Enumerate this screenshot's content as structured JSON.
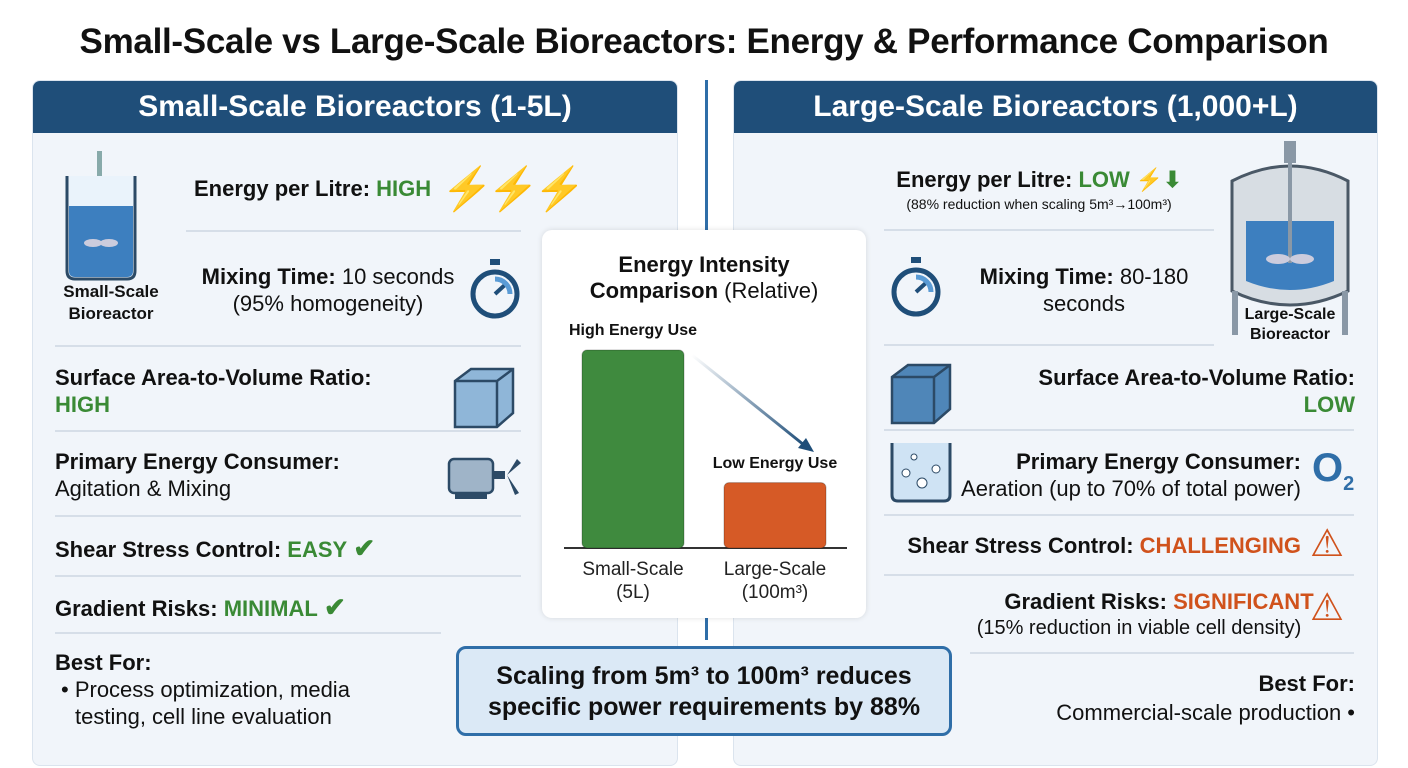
{
  "title": "Small-Scale vs Large-Scale Bioreactors: Energy & Performance Comparison",
  "colors": {
    "header": "#1f4e79",
    "good": "#3a8a35",
    "bad": "#d0521c",
    "accent": "#2f6ea8"
  },
  "left": {
    "header": "Small-Scale Bioreactors (1-5L)",
    "image_label_1": "Small-Scale",
    "image_label_2": "Bioreactor",
    "energy_label": "Energy per Litre:",
    "energy_value": "HIGH",
    "mixing_label": "Mixing Time:",
    "mixing_value": "10 seconds",
    "mixing_note": "(95% homogeneity)",
    "sav_label": "Surface Area-to-Volume Ratio:",
    "sav_value": "HIGH",
    "consumer_label": "Primary Energy Consumer:",
    "consumer_value": "Agitation & Mixing",
    "shear_label": "Shear Stress Control:",
    "shear_value": "EASY",
    "gradient_label": "Gradient Risks:",
    "gradient_value": "MINIMAL",
    "best_label": "Best For:",
    "best_line1": "• Process optimization, media",
    "best_line2": "testing, cell line evaluation"
  },
  "right": {
    "header": "Large-Scale Bioreactors (1,000+L)",
    "image_label_1": "Large-Scale",
    "image_label_2": "Bioreactor",
    "energy_label": "Energy per Litre:",
    "energy_value": "LOW",
    "energy_note": "(88% reduction when scaling 5m³→100m³)",
    "mixing_label": "Mixing Time:",
    "mixing_value": "80-180",
    "mixing_value2": "seconds",
    "sav_label": "Surface Area-to-Volume Ratio:",
    "sav_value": "LOW",
    "consumer_label": "Primary Energy Consumer:",
    "consumer_value": "Aeration (up to 70% of total power)",
    "o2": "O",
    "o2_sub": "2",
    "shear_label": "Shear Stress Control:",
    "shear_value": "CHALLENGING",
    "gradient_label": "Gradient Risks:",
    "gradient_value": "SIGNIFICANT",
    "gradient_note": "(15% reduction in viable cell density)",
    "best_label": "Best For:",
    "best_line1": "Commercial-scale production •"
  },
  "chart_data": {
    "type": "bar",
    "title_bold": "Energy Intensity",
    "title_bold2": "Comparison",
    "title_rest": "(Relative)",
    "categories": [
      "Small-Scale (5L)",
      "Large-Scale (100m³)"
    ],
    "cat_line1": [
      "Small-Scale",
      "Large-Scale"
    ],
    "cat_line2": [
      "(5L)",
      "(100m³)"
    ],
    "values": [
      100,
      33
    ],
    "bar_labels": [
      "High Energy Use",
      "Low Energy Use"
    ],
    "bar_colors": [
      "#3f8a3e",
      "#d65a26"
    ]
  },
  "callout": {
    "line1": "Scaling from 5m³ to 100m³ reduces",
    "line2": "specific power requirements by 88%"
  }
}
